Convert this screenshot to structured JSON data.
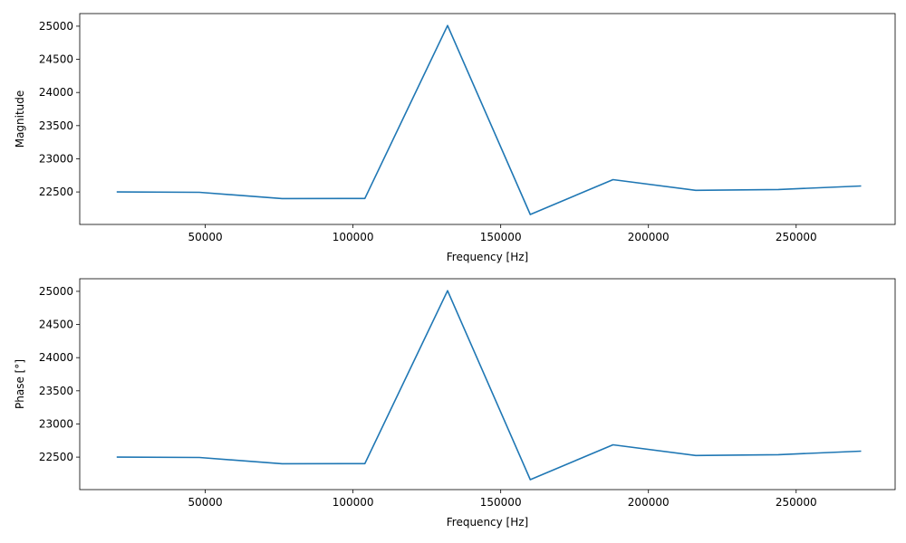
{
  "chart_data": [
    {
      "type": "line",
      "title": "",
      "xlabel": "Frequency [Hz]",
      "ylabel": "Magnitude",
      "xlim": [
        7500,
        283500
      ],
      "ylim": [
        22010,
        25190
      ],
      "xticks": [
        50000,
        100000,
        150000,
        200000,
        250000
      ],
      "yticks": [
        22500,
        23000,
        23500,
        24000,
        24500,
        25000
      ],
      "grid": false,
      "color": "#1f77b4",
      "series": [
        {
          "x": [
            20000,
            48000,
            76000,
            104000,
            132000,
            160000,
            188000,
            216000,
            244000,
            272000
          ],
          "values": [
            22500,
            22495,
            22400,
            22402,
            25010,
            22160,
            22685,
            22525,
            22537,
            22590
          ]
        }
      ]
    },
    {
      "type": "line",
      "title": "",
      "xlabel": "Frequency [Hz]",
      "ylabel": "Phase [°]",
      "xlim": [
        7500,
        283500
      ],
      "ylim": [
        22010,
        25190
      ],
      "xticks": [
        50000,
        100000,
        150000,
        200000,
        250000
      ],
      "yticks": [
        22500,
        23000,
        23500,
        24000,
        24500,
        25000
      ],
      "grid": false,
      "color": "#1f77b4",
      "series": [
        {
          "x": [
            20000,
            48000,
            76000,
            104000,
            132000,
            160000,
            188000,
            216000,
            244000,
            272000
          ],
          "values": [
            22500,
            22495,
            22400,
            22402,
            25010,
            22160,
            22685,
            22525,
            22537,
            22590
          ]
        }
      ]
    }
  ]
}
